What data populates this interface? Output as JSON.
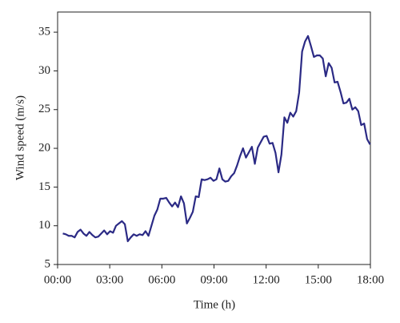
{
  "chart_data": {
    "type": "line",
    "x_label": "Time (h)",
    "y_label": "Wind speed (m/s)",
    "x": [
      0.3,
      0.47,
      0.64,
      0.81,
      0.98,
      1.15,
      1.32,
      1.49,
      1.66,
      1.83,
      2.0,
      2.17,
      2.34,
      2.51,
      2.68,
      2.85,
      3.02,
      3.19,
      3.36,
      3.53,
      3.7,
      3.87,
      4.04,
      4.21,
      4.38,
      4.55,
      4.72,
      4.89,
      5.06,
      5.23,
      5.4,
      5.57,
      5.74,
      5.91,
      6.08,
      6.25,
      6.42,
      6.59,
      6.76,
      6.93,
      7.1,
      7.27,
      7.44,
      7.61,
      7.78,
      7.95,
      8.12,
      8.29,
      8.46,
      8.63,
      8.8,
      8.97,
      9.14,
      9.31,
      9.48,
      9.65,
      9.82,
      9.99,
      10.16,
      10.33,
      10.5,
      10.67,
      10.84,
      11.01,
      11.18,
      11.35,
      11.52,
      11.69,
      11.86,
      12.03,
      12.2,
      12.37,
      12.54,
      12.71,
      12.88,
      13.05,
      13.22,
      13.39,
      13.56,
      13.73,
      13.9,
      14.07,
      14.24,
      14.41,
      14.58,
      14.75,
      14.92,
      15.09,
      15.26,
      15.43,
      15.6,
      15.77,
      15.94,
      16.11,
      16.28,
      16.45,
      16.62,
      16.79,
      16.96,
      17.13,
      17.3,
      17.47,
      17.64,
      17.81,
      17.98
    ],
    "series": [
      {
        "color": "#2b2a85",
        "values": [
          9.0,
          8.9,
          8.7,
          8.7,
          8.5,
          9.2,
          9.5,
          9.0,
          8.7,
          9.2,
          8.8,
          8.5,
          8.6,
          9.0,
          9.4,
          8.9,
          9.3,
          9.1,
          10.0,
          10.3,
          10.6,
          10.2,
          8.0,
          8.5,
          8.9,
          8.7,
          8.9,
          8.8,
          9.3,
          8.7,
          10.0,
          11.3,
          12.1,
          13.5,
          13.5,
          13.6,
          13.0,
          12.5,
          13.0,
          12.4,
          13.8,
          12.9,
          10.3,
          11.0,
          11.8,
          13.8,
          13.7,
          16.0,
          15.9,
          16.0,
          16.2,
          15.8,
          16.0,
          17.4,
          16.0,
          15.7,
          15.8,
          16.4,
          16.8,
          17.8,
          19.0,
          20.0,
          18.8,
          19.5,
          20.2,
          18.0,
          20.1,
          20.8,
          21.5,
          21.6,
          20.6,
          20.7,
          19.4,
          16.9,
          19.2,
          24.0,
          23.3,
          24.6,
          24.1,
          24.8,
          27.2,
          32.5,
          33.8,
          34.5,
          33.2,
          31.8,
          32.0,
          32.0,
          31.6,
          29.3,
          31.0,
          30.4,
          28.5,
          28.6,
          27.3,
          25.8,
          25.9,
          26.4,
          25.0,
          25.3,
          24.8,
          23.0,
          23.2,
          21.2,
          20.5
        ]
      }
    ],
    "xlim": [
      0,
      18
    ],
    "xticks": [
      {
        "value": 0,
        "label": "00:00"
      },
      {
        "value": 3,
        "label": "03:00"
      },
      {
        "value": 6,
        "label": "06:00"
      },
      {
        "value": 9,
        "label": "09:00"
      },
      {
        "value": 12,
        "label": "12:00"
      },
      {
        "value": 15,
        "label": "15:00"
      },
      {
        "value": 18,
        "label": "18:00"
      }
    ],
    "ylim": [
      5,
      37.6
    ],
    "yticks": [
      5,
      10,
      15,
      20,
      25,
      30,
      35
    ]
  }
}
